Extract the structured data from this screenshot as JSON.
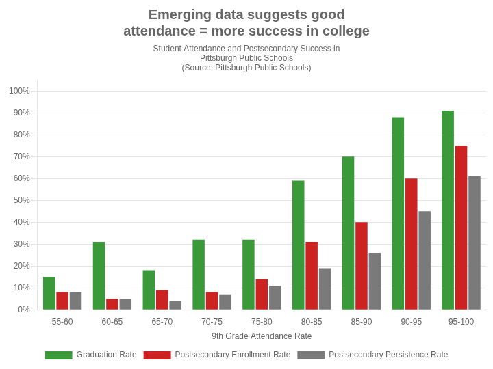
{
  "chart_data": {
    "type": "bar",
    "title": "Emerging data suggests good\nattendance = more success in college",
    "subtitle": "Student Attendance and Postsecondary Success in\nPittsburgh Public Schools",
    "annotations": [
      "(Source: Pittsburgh Public Schools)"
    ],
    "xlabel": "9th Grade Attendance Rate",
    "categories": [
      "55-60",
      "60-65",
      "65-70",
      "70-75",
      "75-80",
      "80-85",
      "85-90",
      "90-95",
      "95-100"
    ],
    "series": [
      {
        "name": "Graduation Rate",
        "color": "#3a9a3a",
        "values": [
          0.15,
          0.31,
          0.18,
          0.32,
          0.32,
          0.59,
          0.7,
          0.88,
          0.91
        ]
      },
      {
        "name": "Postsecondary Enrollment Rate",
        "color": "#cc2222",
        "values": [
          0.08,
          0.05,
          0.09,
          0.08,
          0.14,
          0.31,
          0.4,
          0.6,
          0.75
        ]
      },
      {
        "name": "Postsecondary Persistence Rate",
        "color": "#7a7a7a",
        "values": [
          0.08,
          0.05,
          0.04,
          0.07,
          0.11,
          0.19,
          0.26,
          0.45,
          0.61
        ]
      }
    ],
    "ylim": [
      0,
      1.05
    ],
    "yticks": [
      {
        "value": 0.0,
        "label": "0%"
      },
      {
        "value": 0.1,
        "label": "10%"
      },
      {
        "value": 0.2,
        "label": "20%"
      },
      {
        "value": 0.3,
        "label": "30%"
      },
      {
        "value": 0.4,
        "label": "40%"
      },
      {
        "value": 0.5,
        "label": "50%"
      },
      {
        "value": 0.6,
        "label": "60%"
      },
      {
        "value": 0.7,
        "label": "70%"
      },
      {
        "value": 0.8,
        "label": "80%"
      },
      {
        "value": 0.9,
        "label": "90%"
      },
      {
        "value": 1.0,
        "label": "100%"
      }
    ],
    "grid": true,
    "legend": "bottom"
  }
}
